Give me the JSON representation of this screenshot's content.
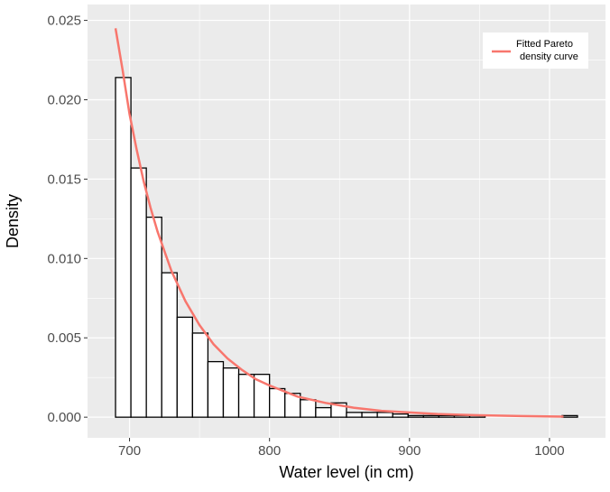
{
  "chart_data": {
    "type": "bar",
    "subtype": "histogram-with-fitted-curve",
    "title": "",
    "xlabel": "Water level (in cm)",
    "ylabel": "Density",
    "xlim": [
      670,
      1040
    ],
    "ylim": [
      -0.0013,
      0.026
    ],
    "x_ticks": [
      700,
      800,
      900,
      1000
    ],
    "x_tick_labels": [
      "700",
      "800",
      "900",
      "1000"
    ],
    "y_ticks": [
      0.0,
      0.005,
      0.01,
      0.015,
      0.02,
      0.025
    ],
    "y_tick_labels": [
      "0.000",
      "0.005",
      "0.010",
      "0.015",
      "0.020",
      "0.025"
    ],
    "grid": true,
    "bin_width": 11,
    "bins": [
      {
        "x_start": 690,
        "x_end": 701,
        "density": 0.0214
      },
      {
        "x_start": 701,
        "x_end": 712,
        "density": 0.0157
      },
      {
        "x_start": 712,
        "x_end": 723,
        "density": 0.0126
      },
      {
        "x_start": 723,
        "x_end": 734,
        "density": 0.0091
      },
      {
        "x_start": 734,
        "x_end": 745,
        "density": 0.0063
      },
      {
        "x_start": 745,
        "x_end": 756,
        "density": 0.0053
      },
      {
        "x_start": 756,
        "x_end": 767,
        "density": 0.0035
      },
      {
        "x_start": 767,
        "x_end": 778,
        "density": 0.0031
      },
      {
        "x_start": 778,
        "x_end": 789,
        "density": 0.0027
      },
      {
        "x_start": 789,
        "x_end": 800,
        "density": 0.0027
      },
      {
        "x_start": 800,
        "x_end": 811,
        "density": 0.0018
      },
      {
        "x_start": 811,
        "x_end": 822,
        "density": 0.0015
      },
      {
        "x_start": 822,
        "x_end": 833,
        "density": 0.0011
      },
      {
        "x_start": 833,
        "x_end": 844,
        "density": 0.0006
      },
      {
        "x_start": 844,
        "x_end": 855,
        "density": 0.0009
      },
      {
        "x_start": 855,
        "x_end": 866,
        "density": 0.0003
      },
      {
        "x_start": 866,
        "x_end": 877,
        "density": 0.0003
      },
      {
        "x_start": 877,
        "x_end": 888,
        "density": 0.0003
      },
      {
        "x_start": 888,
        "x_end": 899,
        "density": 0.0002
      },
      {
        "x_start": 899,
        "x_end": 910,
        "density": 0.0001
      },
      {
        "x_start": 910,
        "x_end": 921,
        "density": 0.0001
      },
      {
        "x_start": 921,
        "x_end": 932,
        "density": 0.0001
      },
      {
        "x_start": 932,
        "x_end": 943,
        "density": 0.0001
      },
      {
        "x_start": 943,
        "x_end": 954,
        "density": 0.0001
      },
      {
        "x_start": 954,
        "x_end": 965,
        "density": 0.0
      },
      {
        "x_start": 965,
        "x_end": 976,
        "density": 0.0
      },
      {
        "x_start": 976,
        "x_end": 987,
        "density": 0.0
      },
      {
        "x_start": 987,
        "x_end": 998,
        "density": 0.0
      },
      {
        "x_start": 998,
        "x_end": 1009,
        "density": 0.0
      },
      {
        "x_start": 1009,
        "x_end": 1020,
        "density": 0.0001
      }
    ],
    "series": [
      {
        "name": "Fitted Pareto density curve",
        "type": "line",
        "color": "#f8766d",
        "x": [
          690,
          695,
          700,
          705,
          710,
          715,
          720,
          730,
          740,
          750,
          760,
          770,
          780,
          790,
          800,
          820,
          840,
          860,
          880,
          900,
          920,
          950,
          980,
          1010
        ],
        "y": [
          0.0245,
          0.0219,
          0.0191,
          0.0169,
          0.0149,
          0.0132,
          0.0117,
          0.0092,
          0.0073,
          0.0058,
          0.0046,
          0.0037,
          0.003,
          0.0024,
          0.002,
          0.0013,
          0.0009,
          0.0006,
          0.0004,
          0.0003,
          0.0002,
          0.00012,
          7e-05,
          4e-05
        ]
      }
    ],
    "legend": {
      "position": "top-right",
      "entries": [
        {
          "line1": "Fitted Pareto",
          "line2": "density curve",
          "color": "#f8766d"
        }
      ]
    },
    "colors": {
      "panel_background": "#ebebeb",
      "grid_major": "#ffffff",
      "bar_fill": "#ffffff",
      "bar_stroke": "#000000",
      "curve": "#f8766d"
    }
  }
}
